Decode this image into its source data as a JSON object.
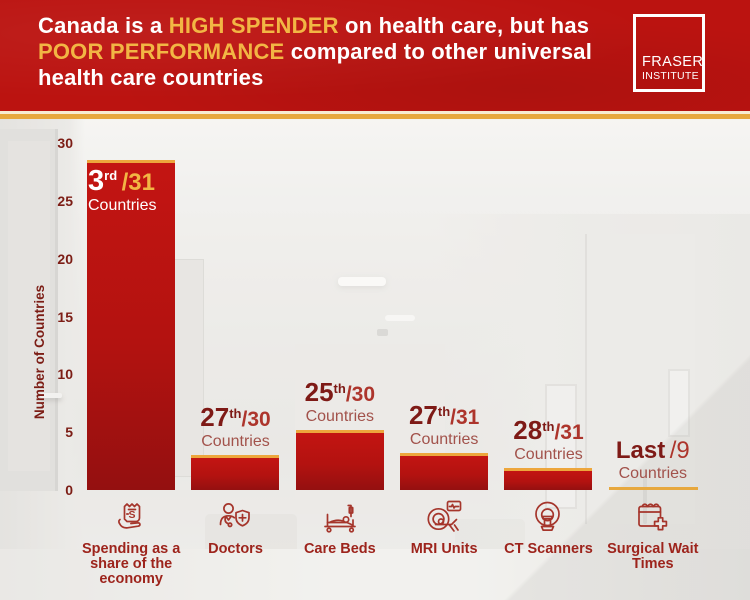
{
  "header": {
    "lines": [
      [
        {
          "text": "Canada is a ",
          "highlight": false
        },
        {
          "text": "HIGH SPENDER",
          "highlight": true
        },
        {
          "text": " on health care, but has",
          "highlight": false
        }
      ],
      [
        {
          "text": "POOR PERFORMANCE",
          "highlight": true
        },
        {
          "text": " compared to other universal",
          "highlight": false
        }
      ],
      [
        {
          "text": "health care countries",
          "highlight": false
        }
      ]
    ],
    "logo": {
      "line1": "FRASER",
      "line2": "INSTITUTE"
    }
  },
  "chart_data": {
    "type": "bar",
    "title": "Canada is a HIGH SPENDER on health care, but has POOR PERFORMANCE compared to other universal health care countries",
    "ylabel": "Number of Countries",
    "ylim": [
      0,
      30
    ],
    "yticks": [
      0,
      5,
      10,
      15,
      20,
      25,
      30
    ],
    "grid": false,
    "legend": "none",
    "categories": [
      "Spending as a share of the economy",
      "Doctors",
      "Care Beds",
      "MRI Units",
      "CT Scanners",
      "Surgical Wait Times"
    ],
    "values": [
      28.5,
      3,
      5.2,
      3.2,
      1.9,
      0
    ],
    "columns": [
      {
        "rank": "3",
        "suffix": "rd",
        "total": "/31",
        "sub_label": "Countries",
        "value": 28.5,
        "label_position": "inside",
        "category": "Spending as a share of the economy",
        "icon": "receipt-in-hand",
        "underline": false
      },
      {
        "rank": "27",
        "suffix": "th",
        "total": "/30",
        "sub_label": "Countries",
        "value": 3,
        "label_position": "above",
        "category": "Doctors",
        "icon": "doctor-with-shield",
        "underline": false
      },
      {
        "rank": "25",
        "suffix": "th",
        "total": "/30",
        "sub_label": "Countries",
        "value": 5.2,
        "label_position": "above",
        "category": "Care Beds",
        "icon": "hospital-bed",
        "underline": false
      },
      {
        "rank": "27",
        "suffix": "th",
        "total": "/31",
        "sub_label": "Countries",
        "value": 3.2,
        "label_position": "above",
        "category": "MRI Units",
        "icon": "mri-machine",
        "underline": false
      },
      {
        "rank": "28",
        "suffix": "th",
        "total": "/31",
        "sub_label": "Countries",
        "value": 1.9,
        "label_position": "above",
        "category": "CT Scanners",
        "icon": "ct-scanner",
        "underline": false
      },
      {
        "rank": "Last",
        "suffix": "",
        "total": "/9",
        "sub_label": "Countries",
        "value": 0,
        "label_position": "above",
        "category": "Surgical Wait Times",
        "icon": "calendar-with-cross",
        "underline": true
      }
    ]
  },
  "colors": {
    "header_bg": "#bb1310",
    "highlight_gold": "#f2b644",
    "band_cream": "#f7ecd2",
    "band_gold": "#e7a83e",
    "bar_red_top": "#c31512",
    "bar_red_bottom": "#941010",
    "bar_border_gold": "#eda63c",
    "rank_maroon": "#7e1a16",
    "total_red": "#ad352c",
    "countries_red": "#a2524b",
    "category_red": "#9d241c",
    "icon_red": "#a5352b",
    "axis_maroon": "#7c1d15"
  }
}
